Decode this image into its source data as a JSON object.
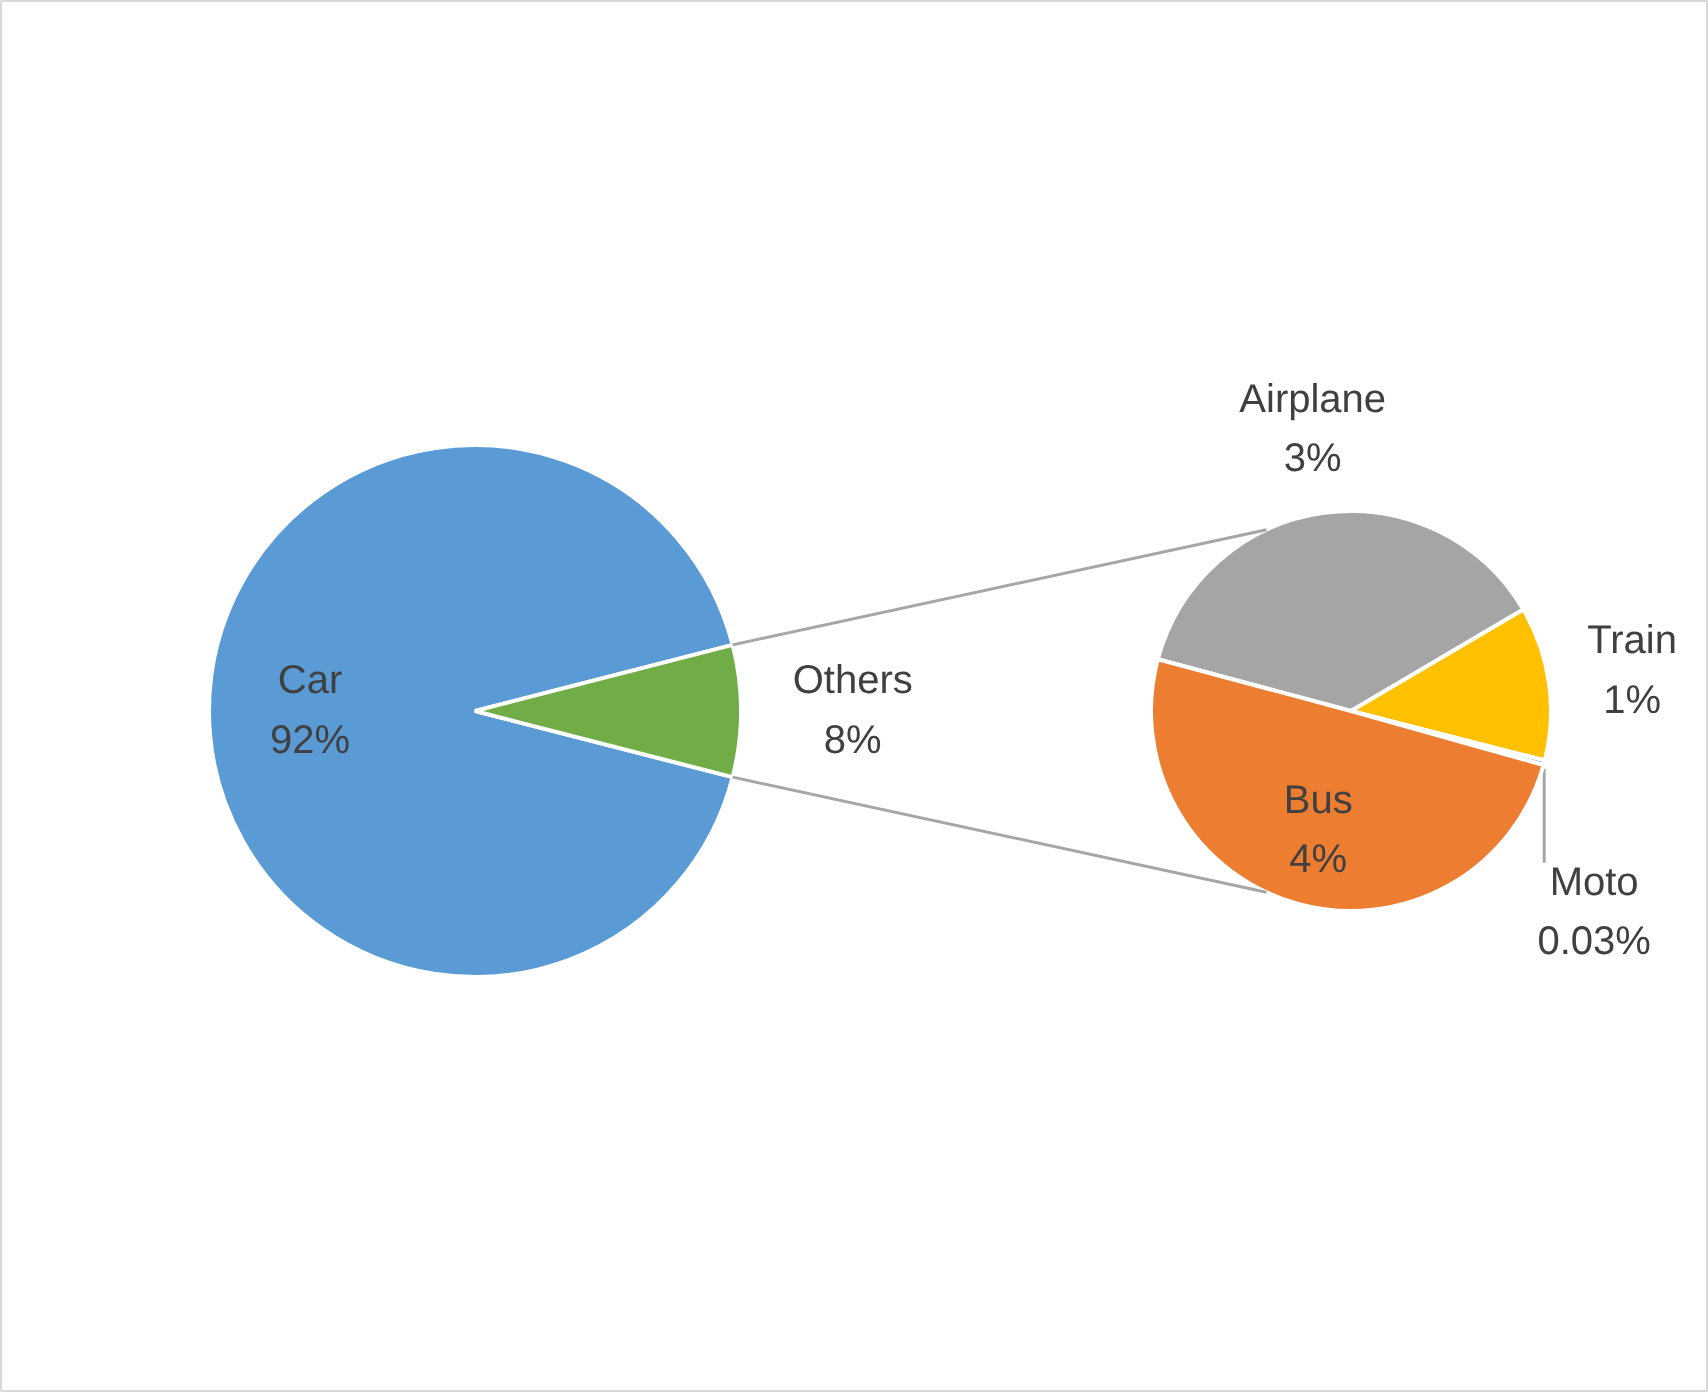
{
  "chart_data": [
    {
      "type": "pie",
      "categories": [
        "Car",
        "Others"
      ],
      "values": [
        92,
        8
      ],
      "colors": [
        "#5b9bd5",
        "#70ad47"
      ],
      "value_labels": [
        "92%",
        "8%"
      ]
    },
    {
      "type": "pie",
      "categories": [
        "Airplane",
        "Train",
        "Moto",
        "Bus"
      ],
      "values": [
        3,
        1,
        0.03,
        4
      ],
      "colors": [
        "#a5a5a5",
        "#ffc000",
        "#4472c4",
        "#ed7d31"
      ],
      "value_labels": [
        "3%",
        "1%",
        "0.03%",
        "4%"
      ]
    }
  ]
}
